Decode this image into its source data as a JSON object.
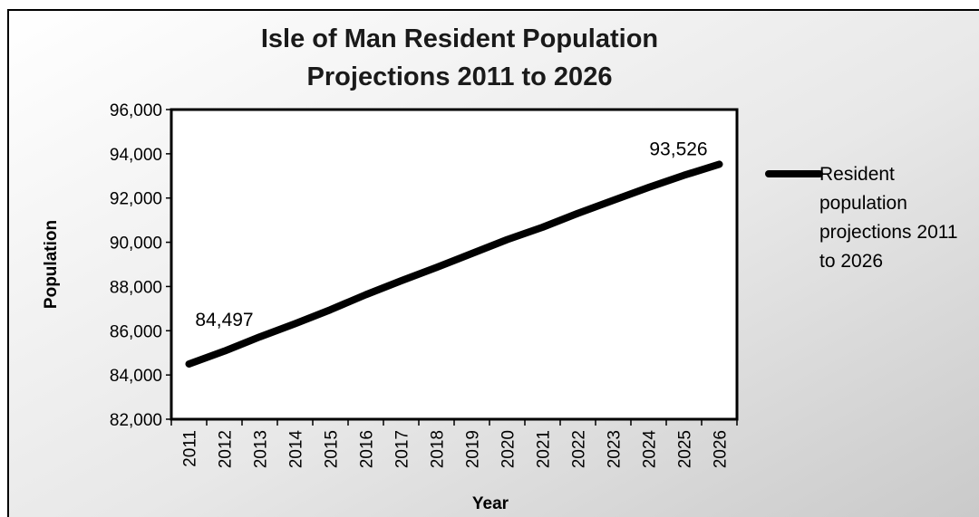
{
  "chart_data": {
    "type": "line",
    "title_lines": [
      "Isle of Man Resident Population",
      "Projections 2011 to 2026"
    ],
    "xlabel": "Year",
    "ylabel": "Population",
    "x": [
      "2011",
      "2012",
      "2013",
      "2014",
      "2015",
      "2016",
      "2017",
      "2018",
      "2019",
      "2020",
      "2021",
      "2022",
      "2023",
      "2024",
      "2025",
      "2026"
    ],
    "series": [
      {
        "name": "Resident population projections 2011 to 2026",
        "values": [
          84497,
          85080,
          85720,
          86320,
          86950,
          87630,
          88260,
          88860,
          89490,
          90120,
          90680,
          91310,
          91900,
          92480,
          93030,
          93526
        ],
        "color": "#000000"
      }
    ],
    "legend_lines": [
      "Resident",
      "population",
      "projections 2011",
      "to 2026"
    ],
    "data_labels": [
      {
        "index": 0,
        "text": "84,497"
      },
      {
        "index": 15,
        "text": "93,526"
      }
    ],
    "y_ticks": [
      "82,000",
      "84,000",
      "86,000",
      "88,000",
      "90,000",
      "92,000",
      "94,000",
      "96,000"
    ],
    "ylim": [
      82000,
      96000
    ],
    "grid": false,
    "legend_position": "right"
  }
}
